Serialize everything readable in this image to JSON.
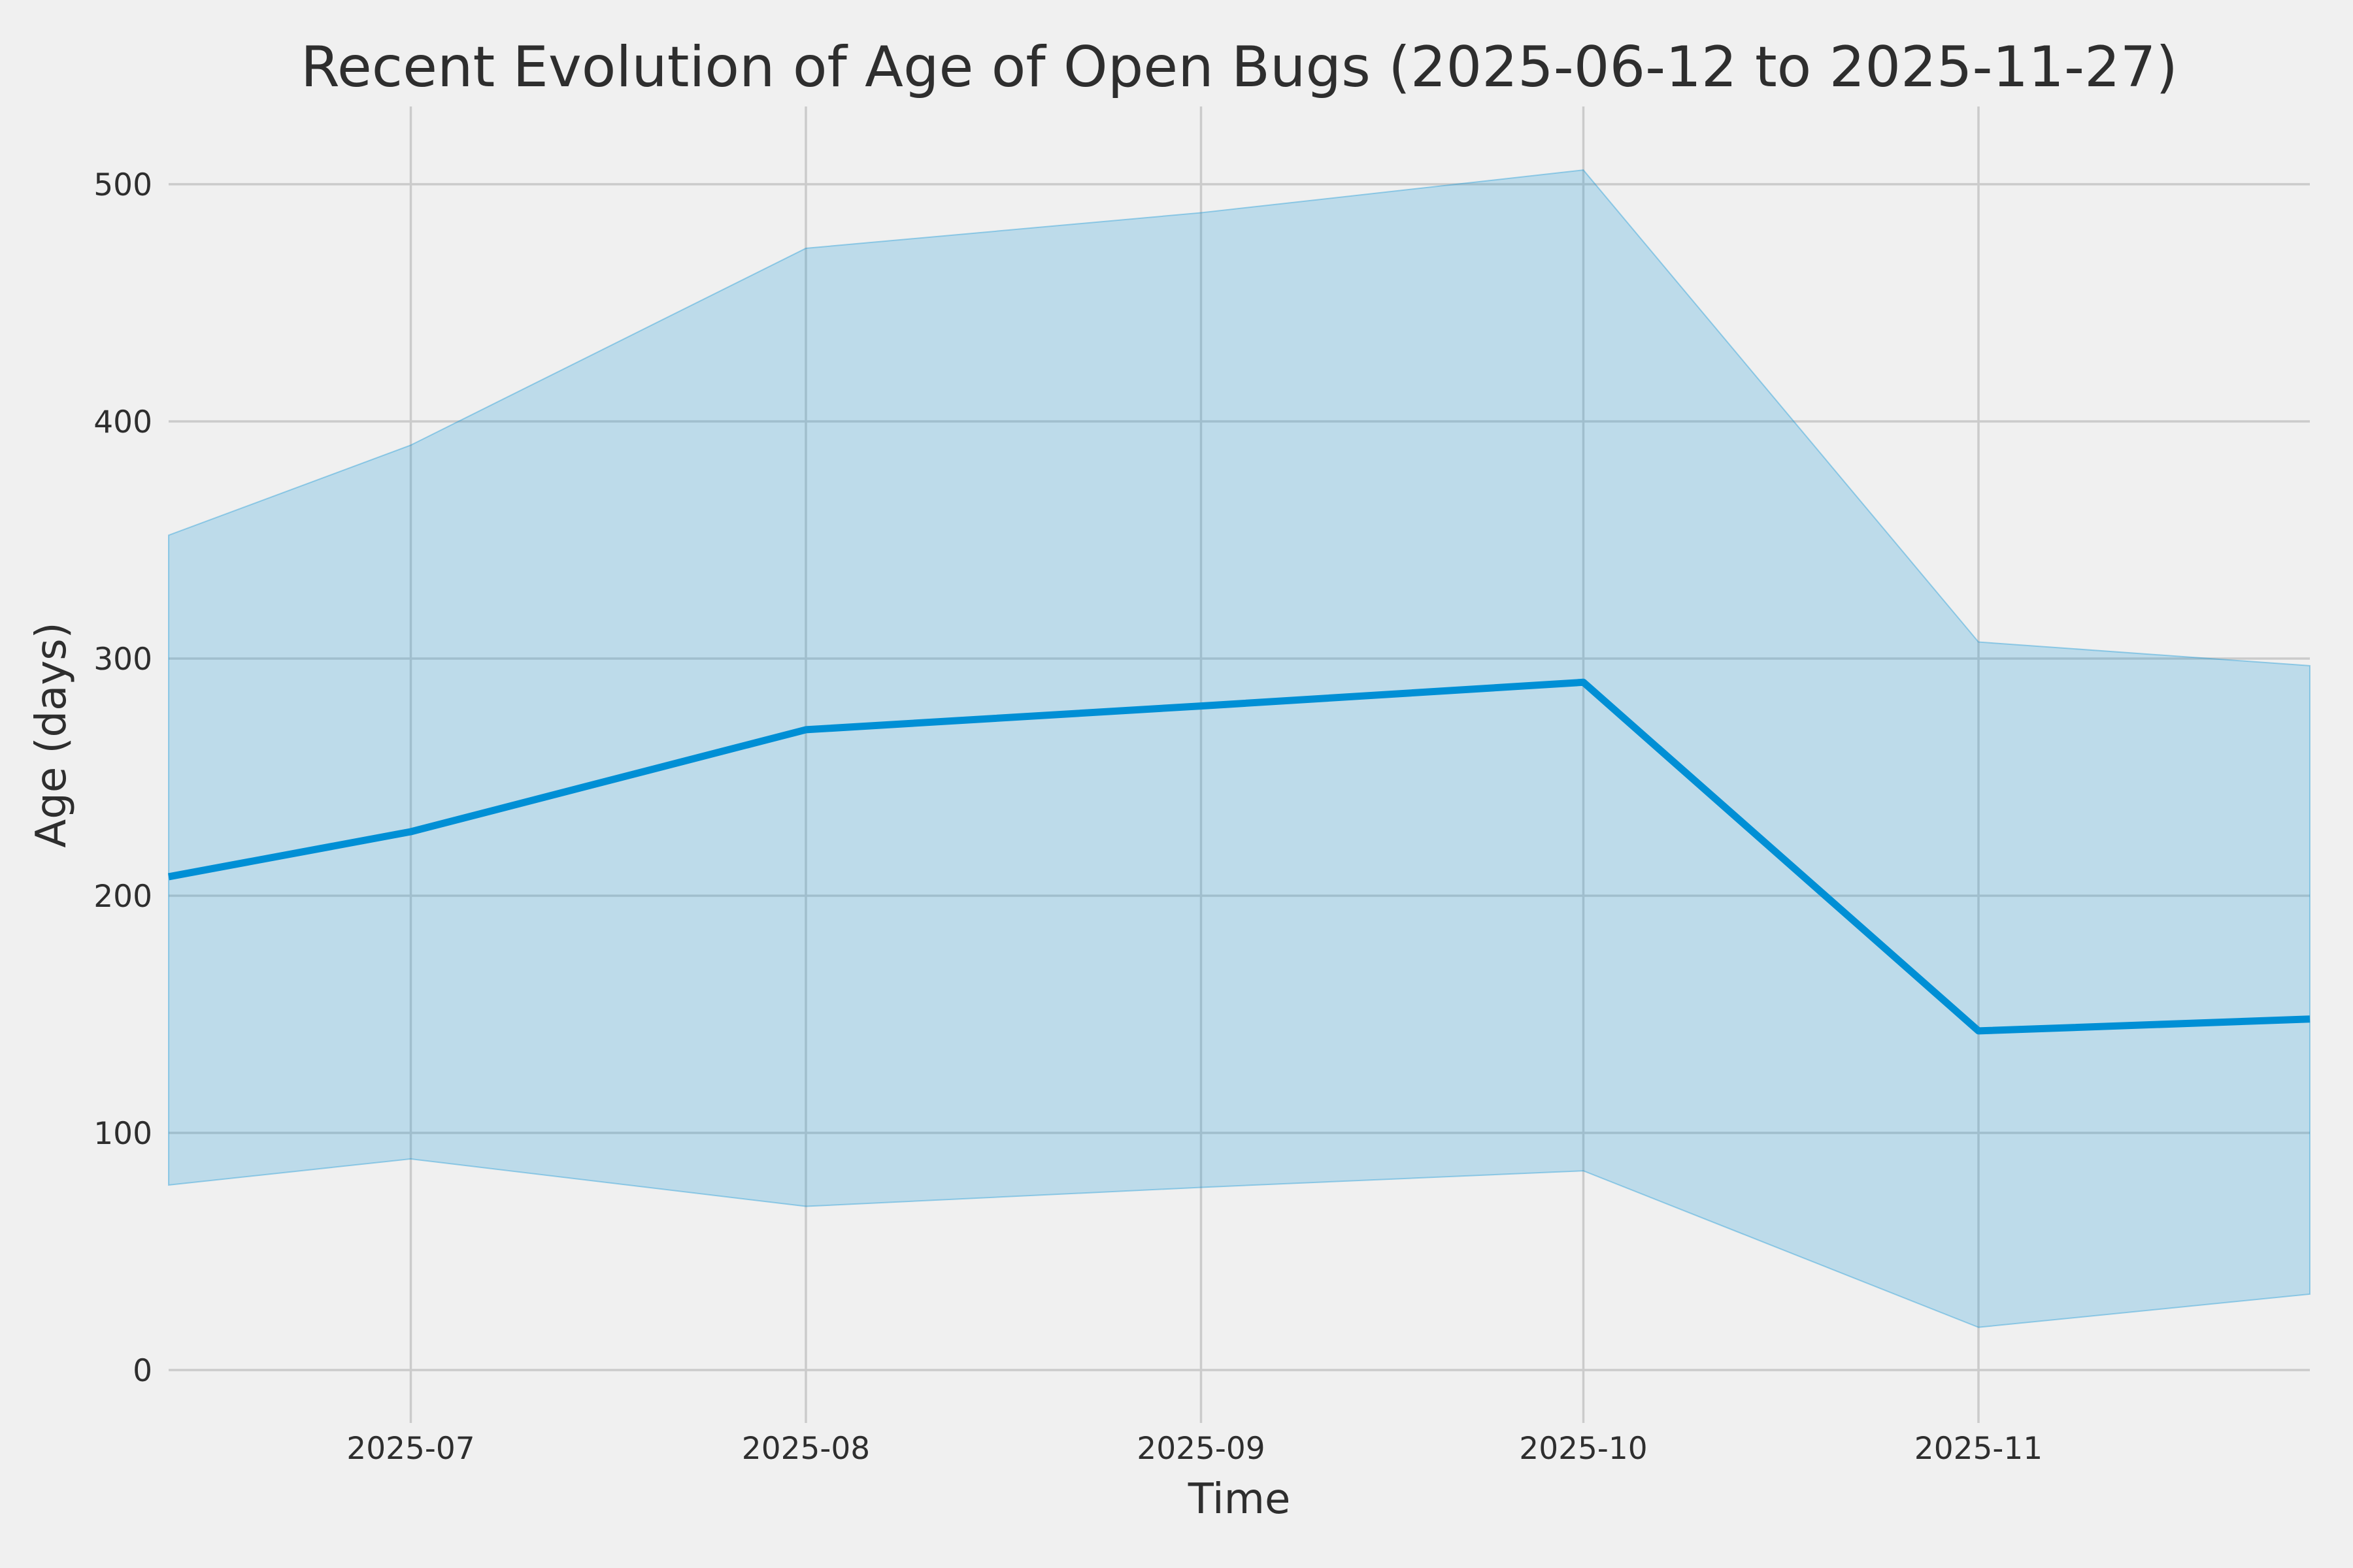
{
  "chart_data": {
    "type": "line",
    "title": "Recent Evolution of Age of Open Bugs (2025-06-12 to 2025-11-27)",
    "xlabel": "Time",
    "ylabel": "Age (days)",
    "x": [
      "2025-06-12",
      "2025-07-01",
      "2025-08-01",
      "2025-09-01",
      "2025-10-01",
      "2025-11-01",
      "2025-11-27"
    ],
    "series": [
      {
        "name": "mean_age_days",
        "role": "line",
        "values": [
          208,
          227,
          270,
          280,
          290,
          143,
          148
        ]
      },
      {
        "name": "band_upper",
        "role": "band-upper",
        "values": [
          352,
          390,
          473,
          488,
          506,
          307,
          297
        ]
      },
      {
        "name": "band_lower",
        "role": "band-lower",
        "values": [
          78,
          89,
          69,
          77,
          84,
          18,
          32
        ]
      }
    ],
    "x_ticks": [
      {
        "date": "2025-07-01",
        "label": "2025-07"
      },
      {
        "date": "2025-08-01",
        "label": "2025-08"
      },
      {
        "date": "2025-09-01",
        "label": "2025-09"
      },
      {
        "date": "2025-10-01",
        "label": "2025-10"
      },
      {
        "date": "2025-11-01",
        "label": "2025-11"
      }
    ],
    "y_ticks": [
      0,
      100,
      200,
      300,
      400,
      500
    ],
    "ylim": [
      -22,
      533
    ],
    "grid": true,
    "legend": false,
    "colors": {
      "line": "#008fd5",
      "band_fill": "rgba(0,143,213,0.21)",
      "band_edge": "rgba(0,143,213,0.35)",
      "grid": "#cbcbcb",
      "background": "#f0f0f0",
      "text": "#2e2e2e"
    }
  }
}
